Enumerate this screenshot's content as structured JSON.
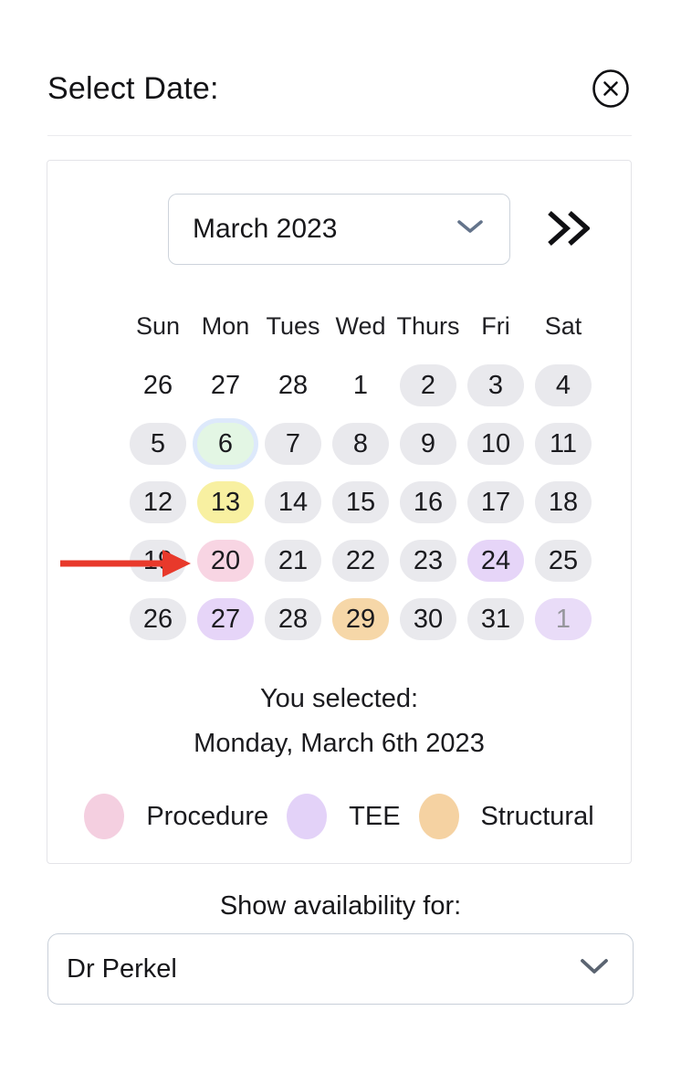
{
  "page": {
    "title": "Select Date:"
  },
  "header": {
    "close_icon": "circle-x"
  },
  "month_bar": {
    "selected_month": "March 2023",
    "dropdown_icon": "chevron-down",
    "fast_forward_icon": "double-chevron-right"
  },
  "calendar": {
    "day_headers": [
      "Sun",
      "Mon",
      "Tues",
      "Wed",
      "Thurs",
      "Fri",
      "Sat"
    ],
    "weeks": [
      [
        {
          "day": "26",
          "style": "plain"
        },
        {
          "day": "27",
          "style": "plain"
        },
        {
          "day": "28",
          "style": "plain"
        },
        {
          "day": "1",
          "style": "plain"
        },
        {
          "day": "2",
          "style": "available"
        },
        {
          "day": "3",
          "style": "available"
        },
        {
          "day": "4",
          "style": "available"
        }
      ],
      [
        {
          "day": "5",
          "style": "available"
        },
        {
          "day": "6",
          "style": "selected"
        },
        {
          "day": "7",
          "style": "available"
        },
        {
          "day": "8",
          "style": "available"
        },
        {
          "day": "9",
          "style": "available"
        },
        {
          "day": "10",
          "style": "available"
        },
        {
          "day": "11",
          "style": "available"
        }
      ],
      [
        {
          "day": "12",
          "style": "available"
        },
        {
          "day": "13",
          "style": "yellow"
        },
        {
          "day": "14",
          "style": "available"
        },
        {
          "day": "15",
          "style": "available"
        },
        {
          "day": "16",
          "style": "available"
        },
        {
          "day": "17",
          "style": "available"
        },
        {
          "day": "18",
          "style": "available"
        }
      ],
      [
        {
          "day": "19",
          "style": "available"
        },
        {
          "day": "20",
          "style": "procedure"
        },
        {
          "day": "21",
          "style": "available"
        },
        {
          "day": "22",
          "style": "available"
        },
        {
          "day": "23",
          "style": "available"
        },
        {
          "day": "24",
          "style": "tee"
        },
        {
          "day": "25",
          "style": "available"
        }
      ],
      [
        {
          "day": "26",
          "style": "available"
        },
        {
          "day": "27",
          "style": "tee"
        },
        {
          "day": "28",
          "style": "available"
        },
        {
          "day": "29",
          "style": "structural"
        },
        {
          "day": "30",
          "style": "available"
        },
        {
          "day": "31",
          "style": "available"
        },
        {
          "day": "1",
          "style": "tee-muted"
        }
      ]
    ],
    "category_colors": {
      "available": "#e9e9ed",
      "selected": "#e3f6e4",
      "selected_ring": "#dde9fb",
      "yellow": "#f8f0a1",
      "procedure": "#f8d5e3",
      "tee": "#e6d5f8",
      "structural": "#f6d7a8",
      "tee-muted": "#e9dcf8"
    }
  },
  "selection": {
    "label": "You selected:",
    "value": "Monday, March 6th 2023"
  },
  "legend": [
    {
      "label": "Procedure",
      "color": "#f4cfe0"
    },
    {
      "label": "TEE",
      "color": "#e3d2f8"
    },
    {
      "label": "Structural",
      "color": "#f5d2a2"
    }
  ],
  "availability": {
    "label": "Show availability for:",
    "selected_provider": "Dr Perkel"
  },
  "annotation_arrow": {
    "target_day": "19",
    "color": "#e8392b"
  }
}
